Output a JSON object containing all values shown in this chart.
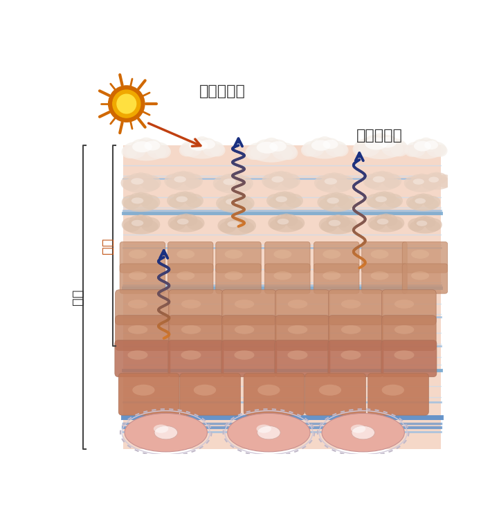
{
  "label_uv": "紫外線など",
  "label_water": "水分の蒸散",
  "label_kakuso": "角層",
  "label_hyohi": "表皮",
  "bg_color": "#ffffff",
  "skin_bg": "#f5d8c8",
  "layer_blue_light": "#c8ddf0",
  "layer_blue_mid": "#a0c0e0",
  "layer_blue_thick": "#7aaad0",
  "arrow_orange": "#d4782a",
  "arrow_blue": "#1a3080",
  "sun_outer": "#d06800",
  "sun_mid": "#f0a800",
  "sun_inner": "#ffe040",
  "sun_arrow": "#c04010",
  "cloud_color1": "#f0e0d8",
  "cloud_color2": "#ede0d8",
  "cloud_white": "#f8f4f2",
  "cell_corneum": "#daa888",
  "cell_epi1": "#cc9878",
  "cell_epi2": "#c88868",
  "cell_deep": "#c07858",
  "cell_basal": "#e8aca0",
  "bracket_color": "#444444",
  "kakuso_color": "#c05010",
  "text_color": "#333333"
}
